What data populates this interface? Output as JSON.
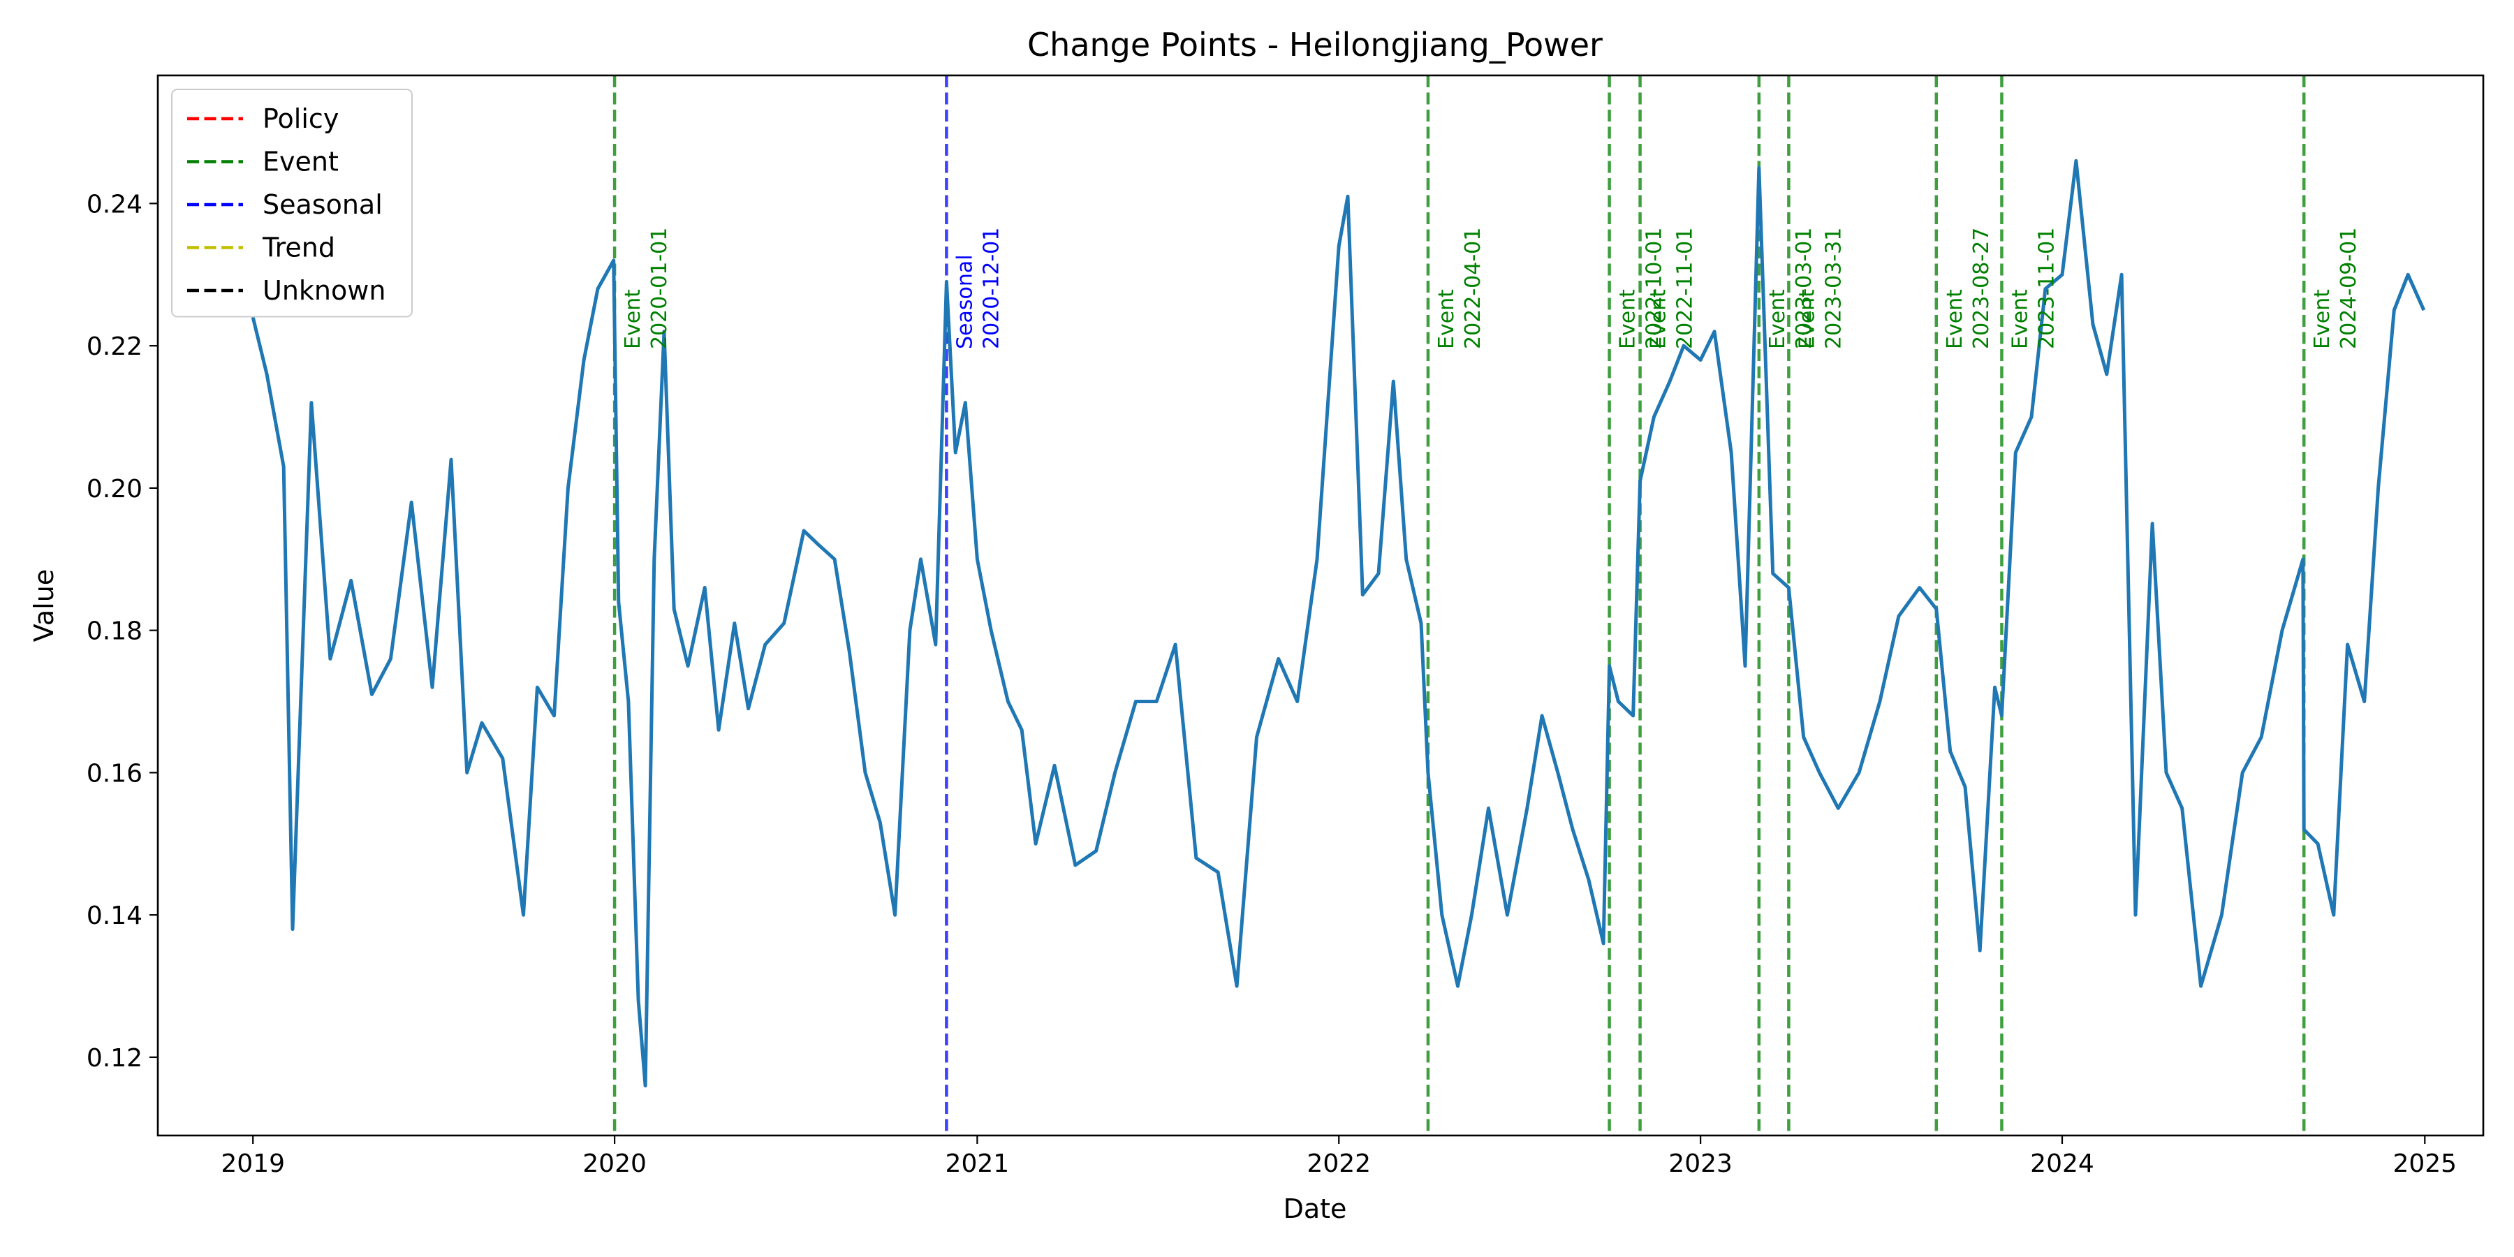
{
  "chart_data": {
    "type": "line",
    "title": "Change Points - Heilongjiang_Power",
    "xlabel": "Date",
    "ylabel": "Value",
    "xlim": [
      "2018-09-27",
      "2025-03-01"
    ],
    "ylim": [
      0.109,
      0.258
    ],
    "xticks": [
      "2019-01-01",
      "2020-01-01",
      "2021-01-01",
      "2022-01-01",
      "2023-01-01",
      "2024-01-01",
      "2025-01-01"
    ],
    "xtick_labels": [
      "2019",
      "2020",
      "2021",
      "2022",
      "2023",
      "2024",
      "2025"
    ],
    "yticks": [
      0.12,
      0.14,
      0.16,
      0.18,
      0.2,
      0.22,
      0.24
    ],
    "ytick_labels": [
      "0.12",
      "0.14",
      "0.16",
      "0.18",
      "0.20",
      "0.22",
      "0.24"
    ],
    "grid": false,
    "legend_position": "top-left",
    "legend": [
      {
        "label": "Policy",
        "color": "#ff0000"
      },
      {
        "label": "Event",
        "color": "#008000"
      },
      {
        "label": "Seasonal",
        "color": "#0000ff"
      },
      {
        "label": "Trend",
        "color": "#bfbf00"
      },
      {
        "label": "Unknown",
        "color": "#000000"
      }
    ],
    "line_color": "#1f77b4",
    "series": [
      {
        "x": [
          "2019-01-01",
          "2019-01-15",
          "2019-02-01",
          "2019-02-10",
          "2019-03-01",
          "2019-03-20",
          "2019-04-10",
          "2019-05-01",
          "2019-05-20",
          "2019-06-10",
          "2019-07-01",
          "2019-07-20",
          "2019-08-05",
          "2019-08-20",
          "2019-09-10",
          "2019-10-01",
          "2019-10-15",
          "2019-11-01",
          "2019-11-15",
          "2019-12-01",
          "2019-12-15",
          "2019-12-31",
          "2020-01-05",
          "2020-01-15",
          "2020-01-25",
          "2020-02-01",
          "2020-02-10",
          "2020-02-20",
          "2020-03-01",
          "2020-03-15",
          "2020-04-01",
          "2020-04-15",
          "2020-05-01",
          "2020-05-15",
          "2020-06-01",
          "2020-06-20",
          "2020-07-10",
          "2020-07-25",
          "2020-08-10",
          "2020-08-25",
          "2020-09-10",
          "2020-09-25",
          "2020-10-10",
          "2020-10-25",
          "2020-11-05",
          "2020-11-20",
          "2020-12-01",
          "2020-12-10",
          "2020-12-20",
          "2021-01-01",
          "2021-01-15",
          "2021-02-01",
          "2021-02-15",
          "2021-03-01",
          "2021-03-20",
          "2021-04-10",
          "2021-05-01",
          "2021-05-20",
          "2021-06-10",
          "2021-07-01",
          "2021-07-20",
          "2021-08-10",
          "2021-09-01",
          "2021-09-20",
          "2021-10-10",
          "2021-11-01",
          "2021-11-20",
          "2021-12-10",
          "2022-01-01",
          "2022-01-10",
          "2022-01-25",
          "2022-02-10",
          "2022-02-25",
          "2022-03-10",
          "2022-03-25",
          "2022-04-01",
          "2022-04-15",
          "2022-05-01",
          "2022-05-15",
          "2022-06-01",
          "2022-06-20",
          "2022-07-10",
          "2022-07-25",
          "2022-08-10",
          "2022-08-25",
          "2022-09-10",
          "2022-09-25",
          "2022-10-01",
          "2022-10-10",
          "2022-10-25",
          "2022-11-01",
          "2022-11-15",
          "2022-12-01",
          "2022-12-15",
          "2023-01-01",
          "2023-01-15",
          "2023-02-01",
          "2023-02-15",
          "2023-03-01",
          "2023-03-15",
          "2023-03-31",
          "2023-04-15",
          "2023-05-01",
          "2023-05-20",
          "2023-06-10",
          "2023-07-01",
          "2023-07-20",
          "2023-08-10",
          "2023-08-27",
          "2023-09-10",
          "2023-09-25",
          "2023-10-10",
          "2023-10-25",
          "2023-11-01",
          "2023-11-15",
          "2023-12-01",
          "2023-12-15",
          "2024-01-01",
          "2024-01-15",
          "2024-02-01",
          "2024-02-15",
          "2024-03-01",
          "2024-03-15",
          "2024-04-01",
          "2024-04-15",
          "2024-05-01",
          "2024-05-20",
          "2024-06-10",
          "2024-07-01",
          "2024-07-20",
          "2024-08-10",
          "2024-08-31",
          "2024-09-01",
          "2024-09-15",
          "2024-10-01",
          "2024-10-15",
          "2024-11-01",
          "2024-11-15",
          "2024-12-01",
          "2024-12-15",
          "2024-12-31"
        ],
        "y": [
          0.224,
          0.216,
          0.203,
          0.138,
          0.212,
          0.176,
          0.187,
          0.171,
          0.176,
          0.198,
          0.172,
          0.204,
          0.16,
          0.167,
          0.162,
          0.14,
          0.172,
          0.168,
          0.2,
          0.218,
          0.228,
          0.232,
          0.184,
          0.17,
          0.128,
          0.116,
          0.19,
          0.222,
          0.183,
          0.175,
          0.186,
          0.166,
          0.181,
          0.169,
          0.178,
          0.181,
          0.194,
          0.192,
          0.19,
          0.177,
          0.16,
          0.153,
          0.14,
          0.18,
          0.19,
          0.178,
          0.229,
          0.205,
          0.212,
          0.19,
          0.18,
          0.17,
          0.166,
          0.15,
          0.161,
          0.147,
          0.149,
          0.16,
          0.17,
          0.17,
          0.178,
          0.148,
          0.146,
          0.13,
          0.165,
          0.176,
          0.17,
          0.19,
          0.234,
          0.241,
          0.185,
          0.188,
          0.215,
          0.19,
          0.181,
          0.16,
          0.14,
          0.13,
          0.14,
          0.155,
          0.14,
          0.155,
          0.168,
          0.16,
          0.152,
          0.145,
          0.136,
          0.175,
          0.17,
          0.168,
          0.201,
          0.21,
          0.215,
          0.22,
          0.218,
          0.222,
          0.205,
          0.175,
          0.245,
          0.188,
          0.186,
          0.165,
          0.16,
          0.155,
          0.16,
          0.17,
          0.182,
          0.186,
          0.183,
          0.163,
          0.158,
          0.135,
          0.172,
          0.168,
          0.205,
          0.21,
          0.228,
          0.23,
          0.246,
          0.223,
          0.216,
          0.23,
          0.14,
          0.195,
          0.16,
          0.155,
          0.13,
          0.14,
          0.16,
          0.165,
          0.18,
          0.19,
          0.152,
          0.15,
          0.14,
          0.178,
          0.17,
          0.2,
          0.225,
          0.23,
          0.225
        ]
      }
    ],
    "change_points": [
      {
        "date": "2020-01-01",
        "label": "Event",
        "type": "Event"
      },
      {
        "date": "2020-12-01",
        "label": "Seasonal",
        "type": "Seasonal"
      },
      {
        "date": "2022-04-01",
        "label": "Event",
        "type": "Event"
      },
      {
        "date": "2022-10-01",
        "label": "Event",
        "type": "Event"
      },
      {
        "date": "2022-11-01",
        "label": "Event",
        "type": "Event"
      },
      {
        "date": "2023-03-01",
        "label": "Event",
        "type": "Event"
      },
      {
        "date": "2023-03-31",
        "label": "Event",
        "type": "Event"
      },
      {
        "date": "2023-08-27",
        "label": "Event",
        "type": "Event"
      },
      {
        "date": "2023-11-01",
        "label": "Event",
        "type": "Event"
      },
      {
        "date": "2024-09-01",
        "label": "Event",
        "type": "Event"
      }
    ]
  }
}
